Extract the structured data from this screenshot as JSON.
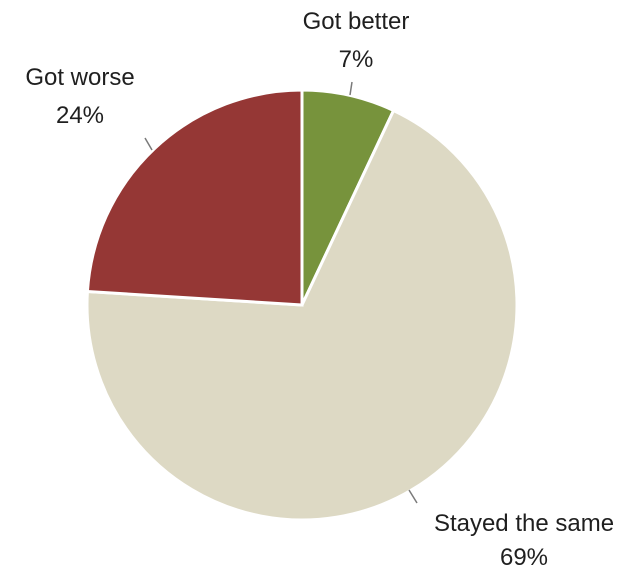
{
  "chart_data": {
    "type": "pie",
    "slices": [
      {
        "label": "Got better",
        "value": 7,
        "percent_label": "7%",
        "color": "#77933C"
      },
      {
        "label": "Stayed the same",
        "value": 69,
        "percent_label": "69%",
        "color": "#DDD9C4"
      },
      {
        "label": "Got worse",
        "value": 24,
        "percent_label": "24%",
        "color": "#953735"
      }
    ]
  }
}
